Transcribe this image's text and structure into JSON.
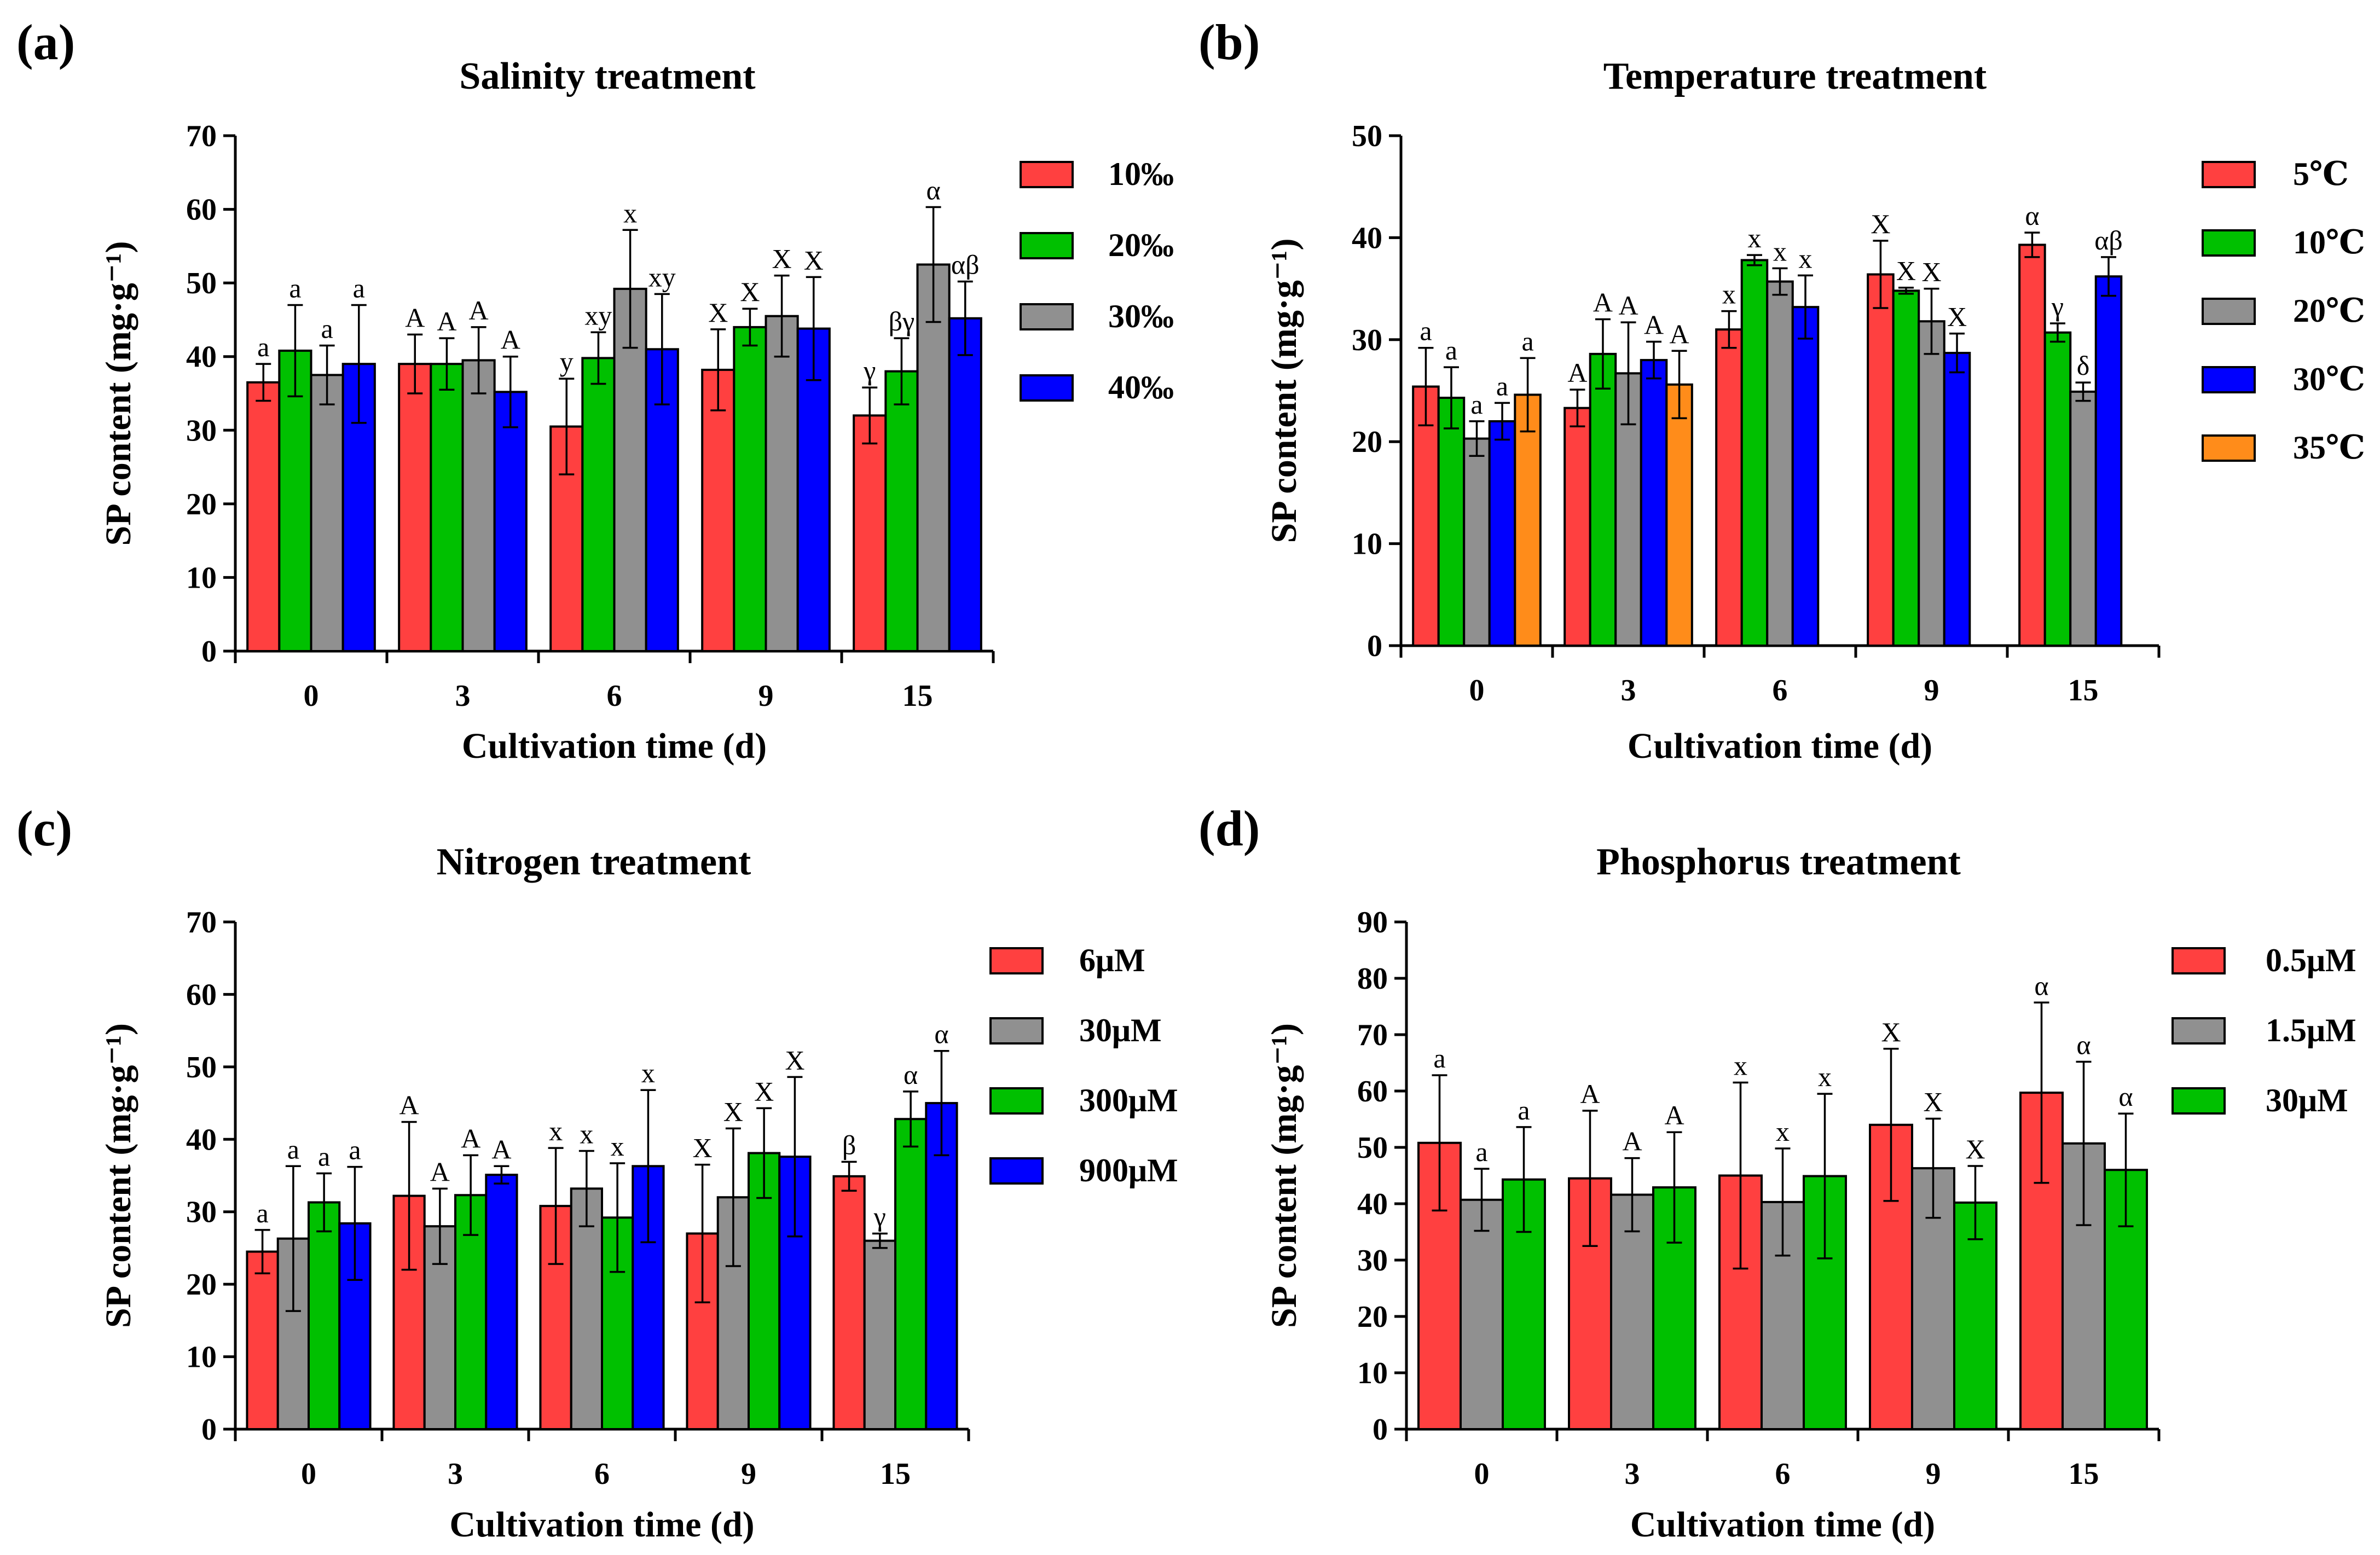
{
  "chart_data": [
    {
      "panel": "(a)",
      "type": "bar",
      "title": "Salinity treatment",
      "xlabel": "Cultivation time (d)",
      "ylabel": "SP content (mg·g⁻¹)",
      "ylim": [
        0,
        70
      ],
      "yticks": [
        0,
        10,
        20,
        30,
        40,
        50,
        60,
        70
      ],
      "categories": [
        "0",
        "3",
        "6",
        "9",
        "15"
      ],
      "legend_position": "right",
      "series": [
        {
          "name": "10‰",
          "color": "#ff4040",
          "values": [
            36.5,
            39.0,
            30.5,
            38.2,
            32.0
          ],
          "errors": [
            2.5,
            4.0,
            6.5,
            5.5,
            3.8
          ],
          "labels": [
            "a",
            "A",
            "y",
            "X",
            "γ"
          ]
        },
        {
          "name": "20‰",
          "color": "#00c000",
          "values": [
            40.8,
            39.0,
            39.8,
            44.0,
            38.0
          ],
          "errors": [
            6.2,
            3.5,
            3.5,
            2.5,
            4.5
          ],
          "labels": [
            "a",
            "A",
            "xy",
            "X",
            "βγ"
          ]
        },
        {
          "name": "30‰",
          "color": "#909090",
          "values": [
            37.5,
            39.5,
            49.2,
            45.5,
            52.5
          ],
          "errors": [
            4.0,
            4.5,
            8.0,
            5.5,
            7.8
          ],
          "labels": [
            "a",
            "A",
            "x",
            "X",
            "α"
          ]
        },
        {
          "name": "40‰",
          "color": "#0000ff",
          "values": [
            39.0,
            35.2,
            41.0,
            43.8,
            45.2
          ],
          "errors": [
            8.0,
            4.8,
            7.5,
            7.0,
            5.0
          ],
          "labels": [
            "a",
            "A",
            "xy",
            "X",
            "αβ"
          ]
        }
      ]
    },
    {
      "panel": "(b)",
      "type": "bar",
      "title": "Temperature treatment",
      "xlabel": "Cultivation time (d)",
      "ylabel": "SP content (mg·g⁻¹)",
      "ylim": [
        0,
        50
      ],
      "yticks": [
        0,
        10,
        20,
        30,
        40,
        50
      ],
      "categories": [
        "0",
        "3",
        "6",
        "9",
        "15"
      ],
      "legend_position": "right",
      "series": [
        {
          "name": "5℃",
          "color": "#ff4040",
          "values": [
            25.4,
            23.3,
            31.0,
            36.4,
            39.3
          ],
          "errors": [
            3.8,
            1.8,
            1.8,
            3.3,
            1.2
          ],
          "labels": [
            "a",
            "A",
            "x",
            "X",
            "α"
          ]
        },
        {
          "name": "10℃",
          "color": "#00c000",
          "values": [
            24.3,
            28.6,
            37.8,
            34.8,
            30.7
          ],
          "errors": [
            3.0,
            3.4,
            0.5,
            0.3,
            0.9
          ],
          "labels": [
            "a",
            "A",
            "x",
            "X",
            "γ"
          ]
        },
        {
          "name": "20℃",
          "color": "#909090",
          "values": [
            20.3,
            26.7,
            35.7,
            31.8,
            24.9
          ],
          "errors": [
            1.7,
            5.0,
            1.3,
            3.2,
            0.9
          ],
          "labels": [
            "a",
            "A",
            "x",
            "X",
            "δ"
          ]
        },
        {
          "name": "30℃",
          "color": "#0000ff",
          "values": [
            22.0,
            28.0,
            33.2,
            28.7,
            36.2
          ],
          "errors": [
            1.8,
            1.8,
            3.1,
            1.9,
            1.9
          ],
          "labels": [
            "a",
            "A",
            "x",
            "X",
            "αβ"
          ]
        },
        {
          "name": "35℃",
          "color": "#ff8c1a",
          "values": [
            24.6,
            25.6,
            null,
            null,
            null
          ],
          "errors": [
            3.6,
            3.3,
            null,
            null,
            null
          ],
          "labels": [
            "a",
            "A",
            "",
            "",
            ""
          ]
        }
      ]
    },
    {
      "panel": "(c)",
      "type": "bar",
      "title": "Nitrogen treatment",
      "xlabel": "Cultivation time (d)",
      "ylabel": "SP content (mg·g⁻¹)",
      "ylim": [
        0,
        70
      ],
      "yticks": [
        0,
        10,
        20,
        30,
        40,
        50,
        60,
        70
      ],
      "categories": [
        "0",
        "3",
        "6",
        "9",
        "15"
      ],
      "legend_position": "right",
      "series": [
        {
          "name": "6μM",
          "color": "#ff4040",
          "values": [
            24.5,
            32.2,
            30.8,
            27.0,
            34.9
          ],
          "errors": [
            3.0,
            10.2,
            8.0,
            9.5,
            2.0
          ],
          "labels": [
            "a",
            "A",
            "x",
            "X",
            "β"
          ]
        },
        {
          "name": "30μM",
          "color": "#909090",
          "values": [
            26.3,
            28.0,
            33.2,
            32.0,
            26.0
          ],
          "errors": [
            10.0,
            5.2,
            5.2,
            9.5,
            1.0
          ],
          "labels": [
            "a",
            "A",
            "x",
            "X",
            "γ"
          ]
        },
        {
          "name": "300μM",
          "color": "#00c000",
          "values": [
            31.3,
            32.3,
            29.2,
            38.1,
            42.8
          ],
          "errors": [
            4.0,
            5.5,
            7.5,
            6.2,
            3.8
          ],
          "labels": [
            "a",
            "A",
            "x",
            "X",
            "α"
          ]
        },
        {
          "name": "900μM",
          "color": "#0000ff",
          "values": [
            28.4,
            35.1,
            36.3,
            37.6,
            45.0
          ],
          "errors": [
            7.8,
            1.2,
            10.5,
            11.0,
            7.2
          ],
          "labels": [
            "a",
            "A",
            "x",
            "X",
            "α"
          ]
        }
      ]
    },
    {
      "panel": "(d)",
      "type": "bar",
      "title": "Phosphorus treatment",
      "xlabel": "Cultivation time (d)",
      "ylabel": "SP content (mg·g⁻¹)",
      "ylim": [
        0,
        90
      ],
      "yticks": [
        0,
        10,
        20,
        30,
        40,
        50,
        60,
        70,
        80,
        90
      ],
      "categories": [
        "0",
        "3",
        "6",
        "9",
        "15"
      ],
      "legend_position": "right",
      "series": [
        {
          "name": "0.5μM",
          "color": "#ff4040",
          "values": [
            50.8,
            44.5,
            45.0,
            54.0,
            59.7
          ],
          "errors": [
            12.0,
            12.0,
            16.5,
            13.5,
            16.0
          ],
          "labels": [
            "a",
            "A",
            "x",
            "X",
            "α"
          ]
        },
        {
          "name": "1.5μM",
          "color": "#909090",
          "values": [
            40.7,
            41.6,
            40.3,
            46.3,
            50.7
          ],
          "errors": [
            5.5,
            6.5,
            9.5,
            8.8,
            14.5
          ],
          "labels": [
            "a",
            "A",
            "x",
            "X",
            "α"
          ]
        },
        {
          "name": "30μM",
          "color": "#00c000",
          "values": [
            44.3,
            42.9,
            44.9,
            40.2,
            46.0
          ],
          "errors": [
            9.3,
            9.8,
            14.6,
            6.5,
            10.0
          ],
          "labels": [
            "a",
            "A",
            "x",
            "X",
            "α"
          ]
        }
      ]
    }
  ]
}
